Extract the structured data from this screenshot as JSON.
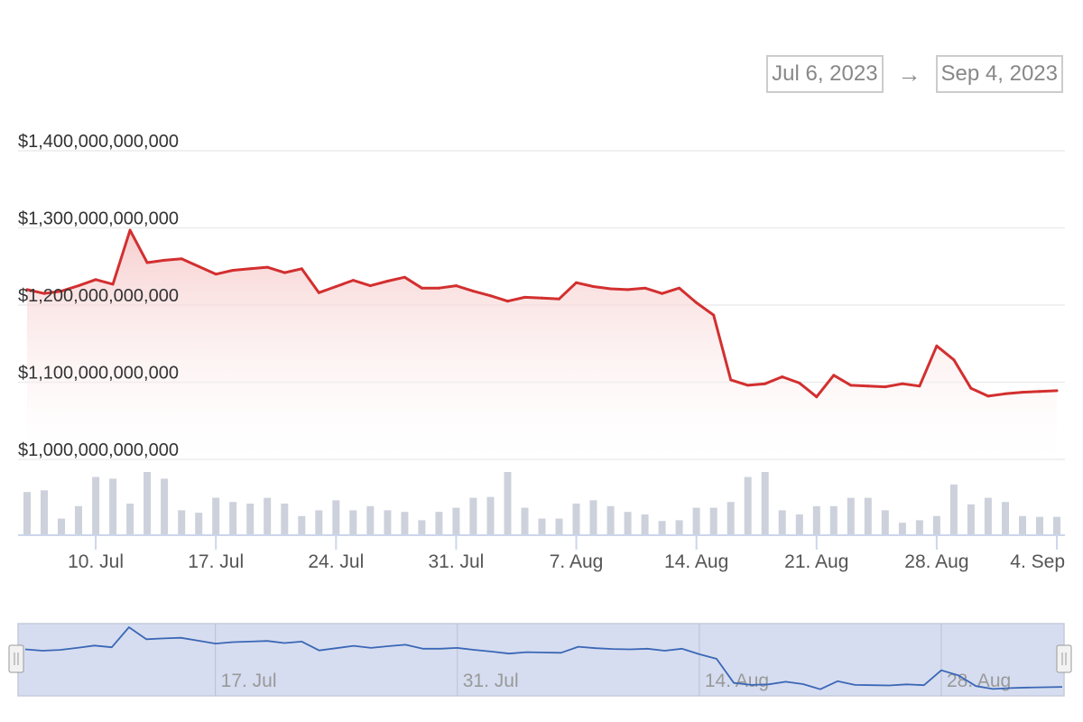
{
  "range_selector": {
    "from": "Jul 6, 2023",
    "arrow": "→",
    "to": "Sep 4, 2023"
  },
  "colors": {
    "price_line": "#d32f2f",
    "volume_bar": "#cdd1db",
    "navigator_line": "#3b67b6",
    "navigator_fill": "#d6ddf0"
  },
  "chart_data": {
    "type": "line",
    "title": "",
    "xlabel": "",
    "ylabel": "",
    "ylim": [
      1000000000000,
      1400000000000
    ],
    "ytick_labels": [
      "$1,000,000,000,000",
      "$1,100,000,000,000",
      "$1,200,000,000,000",
      "$1,300,000,000,000",
      "$1,400,000,000,000"
    ],
    "ytick_values": [
      1000000000000,
      1100000000000,
      1200000000000,
      1300000000000,
      1400000000000
    ],
    "xtick_labels": [
      "10. Jul",
      "17. Jul",
      "24. Jul",
      "31. Jul",
      "7. Aug",
      "14. Aug",
      "21. Aug",
      "28. Aug",
      "4. Sep"
    ],
    "xtick_days": [
      4,
      11,
      18,
      25,
      32,
      39,
      46,
      53,
      60
    ],
    "navigator_tick_labels": [
      "17. Jul",
      "31. Jul",
      "14. Aug",
      "28. Aug"
    ],
    "navigator_tick_days": [
      11,
      25,
      39,
      53
    ],
    "series": [
      {
        "dates": [
          "2023-07-06",
          "2023-07-07",
          "2023-07-08",
          "2023-07-09",
          "2023-07-10",
          "2023-07-11",
          "2023-07-12",
          "2023-07-13",
          "2023-07-14",
          "2023-07-15",
          "2023-07-16",
          "2023-07-17",
          "2023-07-18",
          "2023-07-19",
          "2023-07-20",
          "2023-07-21",
          "2023-07-22",
          "2023-07-23",
          "2023-07-24",
          "2023-07-25",
          "2023-07-26",
          "2023-07-27",
          "2023-07-28",
          "2023-07-29",
          "2023-07-30",
          "2023-07-31",
          "2023-08-01",
          "2023-08-02",
          "2023-08-03",
          "2023-08-04",
          "2023-08-05",
          "2023-08-06",
          "2023-08-07",
          "2023-08-08",
          "2023-08-09",
          "2023-08-10",
          "2023-08-11",
          "2023-08-12",
          "2023-08-13",
          "2023-08-14",
          "2023-08-15",
          "2023-08-16",
          "2023-08-17",
          "2023-08-18",
          "2023-08-19",
          "2023-08-20",
          "2023-08-21",
          "2023-08-22",
          "2023-08-23",
          "2023-08-24",
          "2023-08-25",
          "2023-08-26",
          "2023-08-27",
          "2023-08-28",
          "2023-08-29",
          "2023-08-30",
          "2023-08-31",
          "2023-09-01",
          "2023-09-02",
          "2023-09-03",
          "2023-09-04"
        ],
        "values": [
          1220000000000,
          1215000000000,
          1218000000000,
          1225000000000,
          1233000000000,
          1227000000000,
          1297000000000,
          1255000000000,
          1258000000000,
          1260000000000,
          1250000000000,
          1240000000000,
          1245000000000,
          1247000000000,
          1249000000000,
          1242000000000,
          1247000000000,
          1216000000000,
          1224000000000,
          1232000000000,
          1225000000000,
          1231000000000,
          1236000000000,
          1222000000000,
          1222000000000,
          1225000000000,
          1218000000000,
          1212000000000,
          1205000000000,
          1210000000000,
          1209000000000,
          1208000000000,
          1229000000000,
          1224000000000,
          1221000000000,
          1220000000000,
          1222000000000,
          1215000000000,
          1222000000000,
          1203000000000,
          1187000000000,
          1103000000000,
          1096000000000,
          1098000000000,
          1107000000000,
          1099000000000,
          1081000000000,
          1109000000000,
          1096000000000,
          1095000000000,
          1094000000000,
          1098000000000,
          1095000000000,
          1147000000000,
          1129000000000,
          1092000000000,
          1082000000000,
          1085000000000,
          1087000000000,
          1088000000000,
          1089000000000
        ]
      }
    ],
    "volume_values": [
      52,
      54,
      20,
      35,
      70,
      68,
      38,
      76,
      68,
      30,
      27,
      45,
      40,
      38,
      45,
      38,
      23,
      30,
      42,
      30,
      35,
      30,
      28,
      18,
      28,
      33,
      45,
      46,
      76,
      33,
      20,
      20,
      38,
      42,
      35,
      28,
      25,
      17,
      18,
      33,
      33,
      40,
      70,
      76,
      30,
      25,
      35,
      35,
      45,
      45,
      30,
      15,
      18,
      23,
      61,
      37,
      45,
      40,
      23,
      22,
      22
    ]
  }
}
